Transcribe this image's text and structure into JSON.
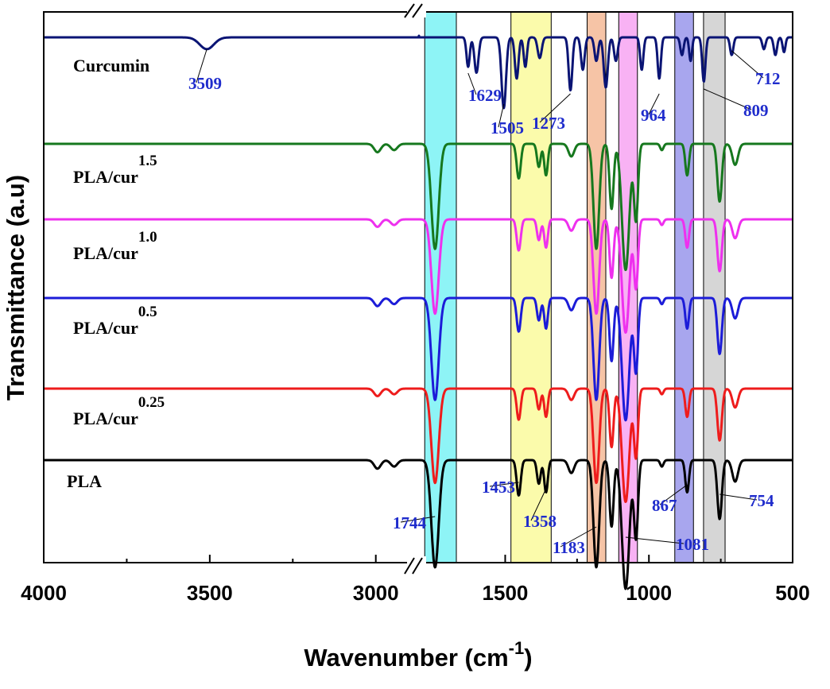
{
  "chart_data": {
    "type": "line",
    "xlabel": "Wavenumber (cm",
    "xlabel_sup": "-1",
    "xlabel_close": ")",
    "ylabel": "Transmittance (a.u)",
    "xlim": [
      4000,
      500
    ],
    "x_ticks": [
      "4000",
      "3500",
      "3000",
      "1500",
      "1000",
      "500"
    ],
    "axis_break": [
      2870,
      1800
    ],
    "bands": [
      {
        "from": 1780,
        "to": 1670,
        "color": "#8ef4f6"
      },
      {
        "from": 1480,
        "to": 1340,
        "color": "#fbfbab"
      },
      {
        "from": 1215,
        "to": 1150,
        "color": "#f6c4a6"
      },
      {
        "from": 1105,
        "to": 1040,
        "color": "#f8b2f4"
      },
      {
        "from": 910,
        "to": 845,
        "color": "#a8a6ee"
      },
      {
        "from": 810,
        "to": 735,
        "color": "#d6d6d6"
      }
    ],
    "series": [
      {
        "name": "Curcumin",
        "sup": "",
        "color": "#0a1474"
      },
      {
        "name": "PLA/cur",
        "sup": "1.5",
        "color": "#16781e"
      },
      {
        "name": "PLA/cur",
        "sup": "1.0",
        "color": "#ee30ee"
      },
      {
        "name": "PLA/cur",
        "sup": "0.5",
        "color": "#1c1cd8"
      },
      {
        "name": "PLA/cur",
        "sup": "0.25",
        "color": "#ee1c1c"
      },
      {
        "name": "PLA",
        "sup": "",
        "color": "#000000"
      }
    ],
    "pla_peaks": [
      {
        "x": 1744,
        "depth": 1.0,
        "width": 18
      },
      {
        "x": 1453,
        "depth": 0.33,
        "width": 10
      },
      {
        "x": 1383,
        "depth": 0.22,
        "width": 9
      },
      {
        "x": 1358,
        "depth": 0.3,
        "width": 9
      },
      {
        "x": 1270,
        "depth": 0.12,
        "width": 14
      },
      {
        "x": 1183,
        "depth": 1.0,
        "width": 14
      },
      {
        "x": 1130,
        "depth": 0.62,
        "width": 10
      },
      {
        "x": 1081,
        "depth": 1.2,
        "width": 18
      },
      {
        "x": 1045,
        "depth": 0.72,
        "width": 10
      },
      {
        "x": 955,
        "depth": 0.06,
        "width": 8
      },
      {
        "x": 867,
        "depth": 0.3,
        "width": 9
      },
      {
        "x": 754,
        "depth": 0.55,
        "width": 11
      },
      {
        "x": 700,
        "depth": 0.2,
        "width": 14
      },
      {
        "x": 2995,
        "depth": 0.08,
        "width": 14
      },
      {
        "x": 2945,
        "depth": 0.06,
        "width": 14
      }
    ],
    "pla_scale": [
      0.98,
      0.88,
      0.95,
      0.88,
      1.0
    ],
    "curcumin_peaks": [
      {
        "x": 3509,
        "depth": 0.2,
        "width": 30
      },
      {
        "x": 1629,
        "depth": 0.5,
        "width": 8
      },
      {
        "x": 1600,
        "depth": 0.6,
        "width": 10
      },
      {
        "x": 1505,
        "depth": 1.2,
        "width": 11
      },
      {
        "x": 1460,
        "depth": 0.7,
        "width": 9
      },
      {
        "x": 1430,
        "depth": 0.5,
        "width": 8
      },
      {
        "x": 1380,
        "depth": 0.35,
        "width": 10
      },
      {
        "x": 1273,
        "depth": 0.9,
        "width": 9
      },
      {
        "x": 1230,
        "depth": 0.55,
        "width": 9
      },
      {
        "x": 1183,
        "depth": 0.4,
        "width": 9
      },
      {
        "x": 1150,
        "depth": 0.85,
        "width": 10
      },
      {
        "x": 1115,
        "depth": 0.4,
        "width": 9
      },
      {
        "x": 1025,
        "depth": 0.55,
        "width": 8
      },
      {
        "x": 964,
        "depth": 0.7,
        "width": 8
      },
      {
        "x": 885,
        "depth": 0.3,
        "width": 8
      },
      {
        "x": 855,
        "depth": 0.4,
        "width": 7
      },
      {
        "x": 809,
        "depth": 0.75,
        "width": 8
      },
      {
        "x": 712,
        "depth": 0.3,
        "width": 8
      },
      {
        "x": 600,
        "depth": 0.2,
        "width": 8
      },
      {
        "x": 560,
        "depth": 0.3,
        "width": 8
      },
      {
        "x": 530,
        "depth": 0.25,
        "width": 7
      }
    ],
    "annotations": [
      {
        "text": "3509",
        "x": 3509,
        "series": 0
      },
      {
        "text": "1629",
        "x": 1629,
        "series": 0
      },
      {
        "text": "1505",
        "x": 1505,
        "series": 0
      },
      {
        "text": "1273",
        "x": 1273,
        "series": 0
      },
      {
        "text": "964",
        "x": 964,
        "series": 0
      },
      {
        "text": "809",
        "x": 809,
        "series": 0
      },
      {
        "text": "712",
        "x": 712,
        "series": 0
      },
      {
        "text": "1744",
        "x": 1744,
        "series": 5
      },
      {
        "text": "1453",
        "x": 1453,
        "series": 5
      },
      {
        "text": "1358",
        "x": 1358,
        "series": 5
      },
      {
        "text": "1183",
        "x": 1183,
        "series": 5
      },
      {
        "text": "1081",
        "x": 1081,
        "series": 5
      },
      {
        "text": "867",
        "x": 867,
        "series": 5
      },
      {
        "text": "754",
        "x": 754,
        "series": 5
      }
    ]
  }
}
